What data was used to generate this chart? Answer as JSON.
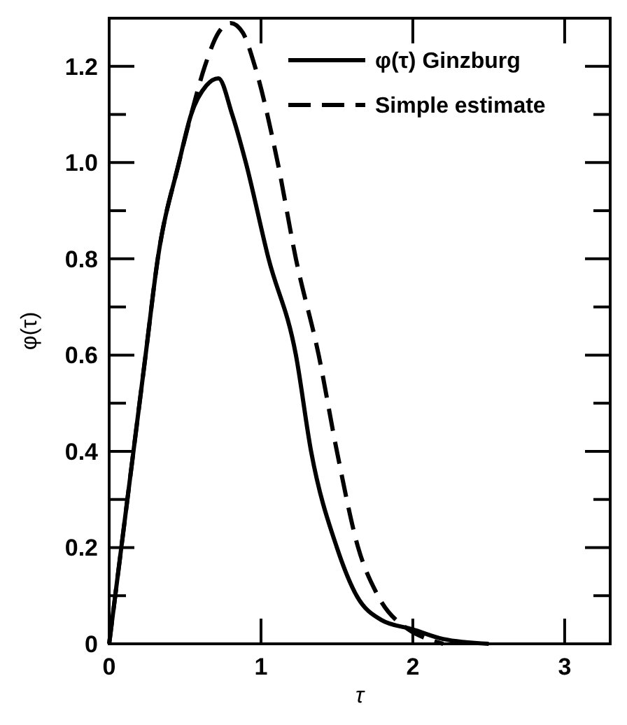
{
  "chart_data": {
    "type": "line",
    "xlabel": "τ",
    "ylabel": "φ(τ)",
    "xlim": [
      0,
      3.3
    ],
    "xticks": [
      0,
      1,
      2,
      3
    ],
    "ylim": [
      0,
      1.3
    ],
    "yticks": [
      0,
      0.2,
      0.4,
      0.6,
      0.8,
      {
        "value": 1,
        "label": "1.0"
      },
      1.2
    ],
    "legend": "top right",
    "grid": false,
    "series": [
      {
        "name": "φ(τ) Ginzburg",
        "color": "#000000",
        "line_style": "solid",
        "x": [
          0,
          0.08,
          0.16,
          0.24,
          0.32,
          0.46,
          0.54,
          0.64,
          0.72,
          0.81,
          0.9,
          1.05,
          1.23,
          1.33,
          1.5,
          1.63,
          1.79,
          2.0,
          2.2,
          2.5
        ],
        "values": [
          0,
          0.2,
          0.4,
          0.6,
          0.8,
          1.0,
          1.1,
          1.16,
          1.175,
          1.1,
          1.0,
          0.8,
          0.6,
          0.4,
          0.2,
          0.1,
          0.05,
          0.03,
          0.01,
          0
        ]
      },
      {
        "name": "Simple estimate",
        "color": "#000000",
        "line_style": "dashed",
        "x": [
          0,
          0.08,
          0.16,
          0.24,
          0.32,
          0.46,
          0.54,
          0.63,
          0.72,
          0.8,
          0.88,
          0.96,
          1.11,
          1.23,
          1.38,
          1.5,
          1.64,
          1.77,
          1.97,
          2.1,
          2.2
        ],
        "values": [
          0,
          0.2,
          0.4,
          0.6,
          0.8,
          1.0,
          1.1,
          1.2,
          1.27,
          1.29,
          1.27,
          1.2,
          1.0,
          0.8,
          0.6,
          0.4,
          0.2,
          0.1,
          0.03,
          0.01,
          0
        ]
      }
    ]
  }
}
